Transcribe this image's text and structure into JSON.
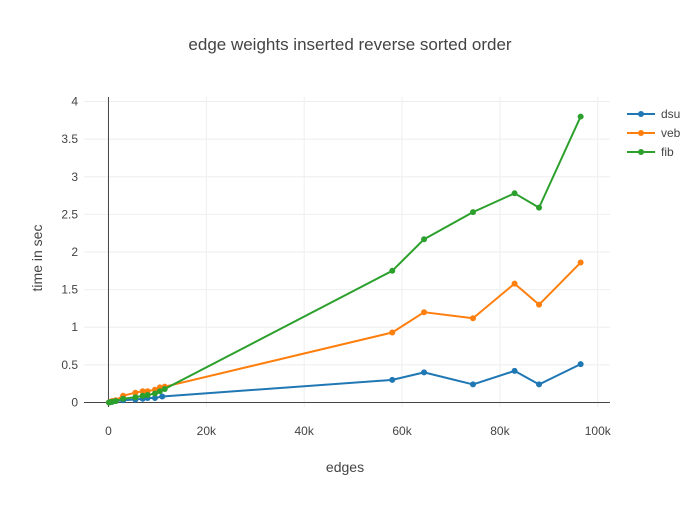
{
  "chart_data": {
    "type": "line",
    "title": "edge weights inserted reverse sorted order",
    "xlabel": "edges",
    "ylabel": "time in sec",
    "xlim": [
      -5000,
      102500
    ],
    "ylim": [
      -0.06,
      4.06
    ],
    "x_ticks": [
      0,
      20000,
      40000,
      60000,
      80000,
      100000
    ],
    "x_tick_labels": [
      "0",
      "20k",
      "40k",
      "60k",
      "80k",
      "100k"
    ],
    "y_ticks": [
      0,
      0.5,
      1,
      1.5,
      2,
      2.5,
      3,
      3.5,
      4
    ],
    "y_tick_labels": [
      "0",
      "0.5",
      "1",
      "1.5",
      "2",
      "2.5",
      "3",
      "3.5",
      "4"
    ],
    "grid": true,
    "legend_position": "top-right",
    "series": [
      {
        "name": "dsu",
        "color": "#1f77b4",
        "x": [
          100,
          400,
          800,
          1500,
          3000,
          5500,
          7000,
          8000,
          9500,
          11000,
          58000,
          64500,
          74500,
          83000,
          88000,
          96500
        ],
        "y": [
          0.0,
          0.005,
          0.01,
          0.02,
          0.03,
          0.04,
          0.05,
          0.06,
          0.06,
          0.08,
          0.3,
          0.4,
          0.24,
          0.42,
          0.24,
          0.51
        ]
      },
      {
        "name": "veb",
        "color": "#ff7f0e",
        "x": [
          100,
          400,
          800,
          1500,
          3000,
          5500,
          7000,
          8000,
          9500,
          10500,
          11500,
          58000,
          64500,
          74500,
          83000,
          88000,
          96500
        ],
        "y": [
          0.0,
          0.01,
          0.02,
          0.03,
          0.09,
          0.13,
          0.15,
          0.15,
          0.17,
          0.2,
          0.21,
          0.93,
          1.2,
          1.12,
          1.58,
          1.3,
          1.86
        ]
      },
      {
        "name": "fib",
        "color": "#2ca02c",
        "x": [
          100,
          400,
          800,
          1500,
          3000,
          5500,
          7000,
          8000,
          9500,
          10500,
          11500,
          58000,
          64500,
          74500,
          83000,
          88000,
          96500
        ],
        "y": [
          0.0,
          0.005,
          0.01,
          0.02,
          0.05,
          0.07,
          0.09,
          0.1,
          0.12,
          0.15,
          0.18,
          1.75,
          2.17,
          2.53,
          2.78,
          2.59,
          3.8
        ]
      }
    ]
  }
}
